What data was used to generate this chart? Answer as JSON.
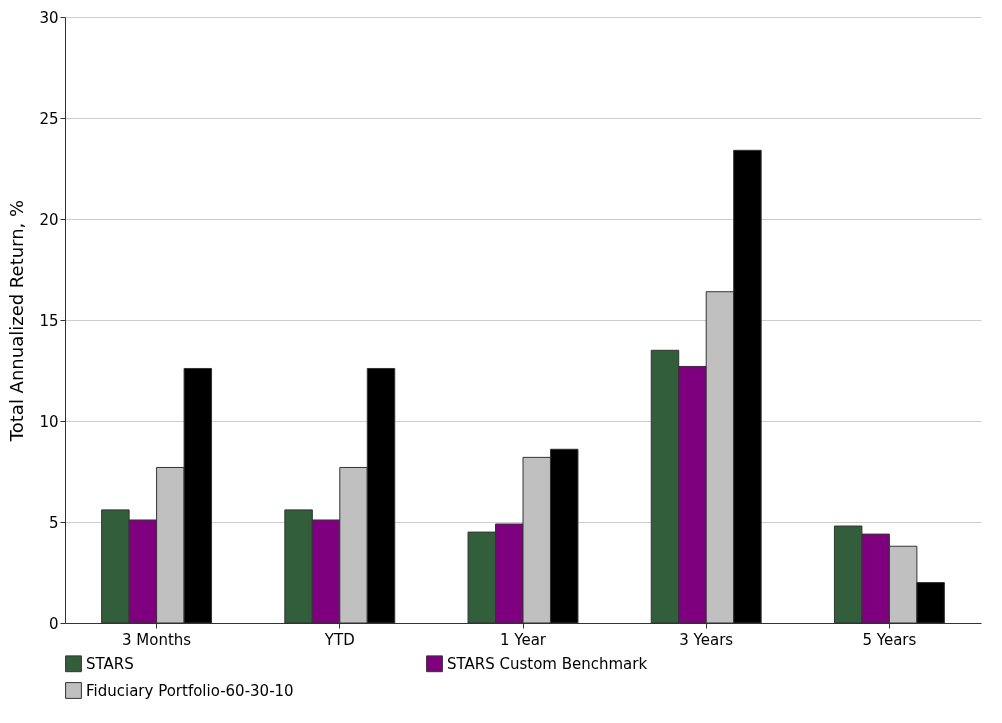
{
  "chart_data": {
    "type": "bar",
    "ylabel": "Total Annualized Return, %",
    "categories": [
      "3 Months",
      "YTD",
      "1 Year",
      "3 Years",
      "5 Years"
    ],
    "series": [
      {
        "name": "STARS",
        "color": "#325e3c",
        "values": [
          5.6,
          5.6,
          4.5,
          13.5,
          4.8
        ]
      },
      {
        "name": "STARS Custom Benchmark",
        "color": "#7f007f",
        "values": [
          5.1,
          5.1,
          4.9,
          12.7,
          4.4
        ]
      },
      {
        "name": "Fiduciary Portfolio-60-30-10",
        "color": "#c0c0c0",
        "values": [
          7.7,
          7.7,
          8.2,
          16.4,
          3.8
        ]
      },
      {
        "color": "#000000",
        "values": [
          12.6,
          12.6,
          8.6,
          23.4,
          2.0
        ]
      }
    ],
    "ylim": [
      0,
      30
    ],
    "yticks": [
      0,
      5,
      10,
      15,
      20,
      25,
      30
    ],
    "grid": "y",
    "legend": "bottom"
  }
}
